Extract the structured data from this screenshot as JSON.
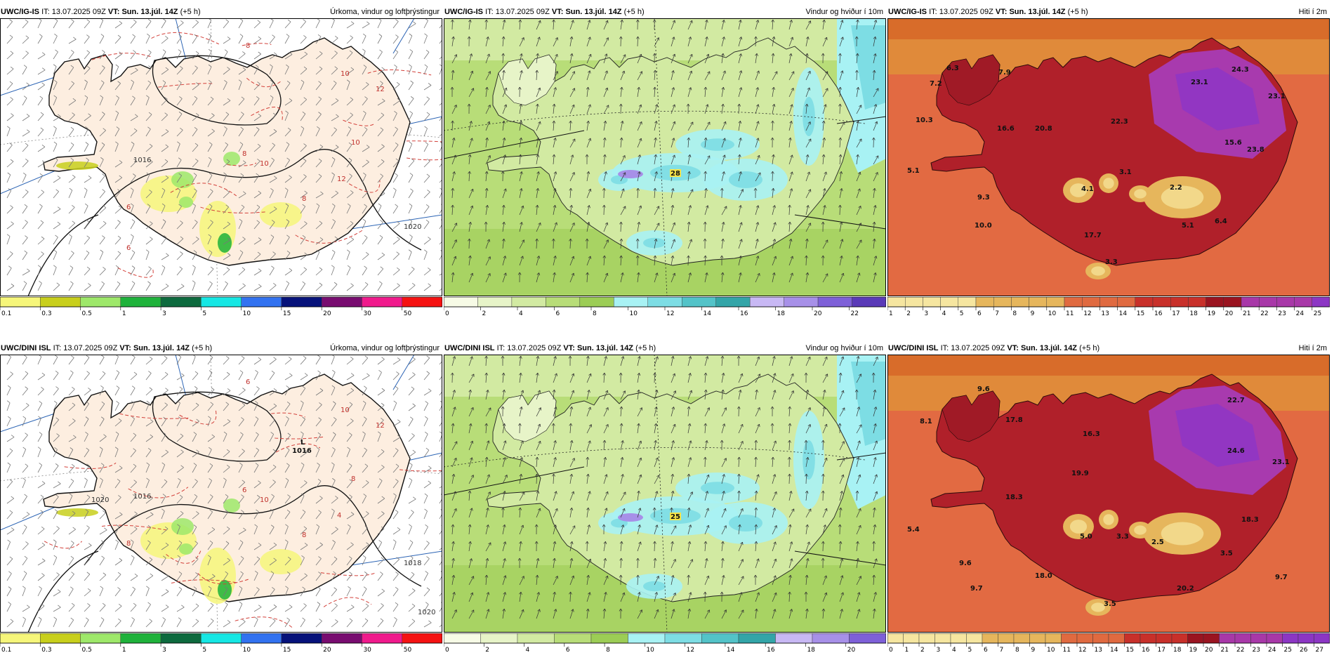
{
  "panels": [
    {
      "id": "igis-precip",
      "model": "UWC/IG-IS",
      "it_label": "IT:",
      "it": "13.07.2025 09Z",
      "vt_label": "VT:",
      "vt": "Sun. 13.júl. 14Z",
      "lead": "(+5 h)",
      "title": "Úrkoma, vindur og loftþrýstingur",
      "type": "precip",
      "legend": {
        "labels": [
          "0.1",
          "0.3",
          "0.5",
          "1",
          "3",
          "5",
          "10",
          "15",
          "20",
          "30",
          "50"
        ],
        "colors": [
          "#f6f67a",
          "#c8cf1c",
          "#9ee86a",
          "#1fb23b",
          "#0d6a3e",
          "#16e7e4",
          "#3272f0",
          "#06127a",
          "#780c70",
          "#f01a8c",
          "#f51212"
        ]
      },
      "pressure_labels": [
        "1016",
        "1020"
      ],
      "isotherm_labels": [
        "8",
        "10",
        "12",
        "6",
        "8",
        "8",
        "10",
        "12",
        "10",
        "6"
      ]
    },
    {
      "id": "igis-wind",
      "model": "UWC/IG-IS",
      "it_label": "IT:",
      "it": "13.07.2025 09Z",
      "vt_label": "VT:",
      "vt": "Sun. 13.júl. 14Z",
      "lead": "(+5 h)",
      "title": "Vindur og hviður í 10m",
      "type": "wind",
      "max_gust": "28",
      "legend": {
        "labels": [
          "0",
          "2",
          "4",
          "6",
          "8",
          "10",
          "12",
          "14",
          "16",
          "18",
          "20",
          "22"
        ],
        "colors": [
          "#f7fbe6",
          "#e7f4c8",
          "#d2eaa2",
          "#b8dd78",
          "#9ccd55",
          "#a8f2f4",
          "#7ddde4",
          "#53c3c8",
          "#33a5a8",
          "#c8b8f4",
          "#a790e8",
          "#7e60d8",
          "#5a3ab8"
        ]
      }
    },
    {
      "id": "igis-temp",
      "model": "UWC/IG-IS",
      "it_label": "IT:",
      "it": "13.07.2025 09Z",
      "vt_label": "VT:",
      "vt": "Sun. 13.júl. 14Z",
      "lead": "(+5 h)",
      "title": "Hiti í 2m",
      "type": "temp",
      "values": [
        "6.3",
        "7.2",
        "7.9",
        "24.3",
        "23.1",
        "23.1",
        "10.3",
        "16.6",
        "20.8",
        "22.3",
        "15.6",
        "23.8",
        "5.1",
        "3.1",
        "4.1",
        "2.2",
        "9.3",
        "10.0",
        "6.4",
        "5.1",
        "17.7",
        "3.3"
      ],
      "legend": {
        "labels": [
          "1",
          "2",
          "3",
          "4",
          "5",
          "6",
          "7",
          "8",
          "9",
          "10",
          "11",
          "12",
          "13",
          "14",
          "15",
          "16",
          "17",
          "18",
          "19",
          "20",
          "21",
          "22",
          "23",
          "24",
          "25"
        ]
      }
    },
    {
      "id": "dini-precip",
      "model": "UWC/DINI ISL",
      "it_label": "IT:",
      "it": "13.07.2025 09Z",
      "vt_label": "VT:",
      "vt": "Sun. 13.júl. 14Z",
      "lead": "(+5 h)",
      "title": "Úrkoma, vindur og loftþrýstingur",
      "type": "precip",
      "low_marker": "L",
      "low_value": "1016",
      "legend": {
        "labels": [
          "0.1",
          "0.3",
          "0.5",
          "1",
          "3",
          "5",
          "10",
          "15",
          "20",
          "30",
          "50"
        ],
        "colors": [
          "#f6f67a",
          "#c8cf1c",
          "#9ee86a",
          "#1fb23b",
          "#0d6a3e",
          "#16e7e4",
          "#3272f0",
          "#06127a",
          "#780c70",
          "#f01a8c",
          "#f51212"
        ]
      },
      "pressure_labels": [
        "1016",
        "1018",
        "1020",
        "1020"
      ],
      "isotherm_labels": [
        "6",
        "10",
        "12",
        "8",
        "6",
        "8",
        "10",
        "4",
        "8"
      ]
    },
    {
      "id": "dini-wind",
      "model": "UWC/DINI ISL",
      "it_label": "IT:",
      "it": "13.07.2025 09Z",
      "vt_label": "VT:",
      "vt": "Sun. 13.júl. 14Z",
      "lead": "(+5 h)",
      "title": "Vindur og hviður í 10m",
      "type": "wind",
      "max_gust": "25",
      "legend": {
        "labels": [
          "0",
          "2",
          "4",
          "6",
          "8",
          "10",
          "12",
          "14",
          "16",
          "18",
          "20"
        ],
        "colors": [
          "#f7fbe6",
          "#e7f4c8",
          "#d2eaa2",
          "#b8dd78",
          "#9ccd55",
          "#a8f2f4",
          "#7ddde4",
          "#53c3c8",
          "#33a5a8",
          "#c8b8f4",
          "#a790e8",
          "#7e60d8"
        ]
      }
    },
    {
      "id": "dini-temp",
      "model": "UWC/DINI ISL",
      "it_label": "IT:",
      "it": "13.07.2025 09Z",
      "vt_label": "VT:",
      "vt": "Sun. 13.júl. 14Z",
      "lead": "(+5 h)",
      "title": "Hiti í 2m",
      "type": "temp",
      "values": [
        "9.6",
        "8.1",
        "17.8",
        "16.3",
        "22.7",
        "23.1",
        "24.6",
        "19.9",
        "18.3",
        "18.3",
        "5.4",
        "5.0",
        "3.3",
        "2.5",
        "3.5",
        "9.6",
        "18.0",
        "9.7",
        "9.7",
        "20.2",
        "3.5"
      ],
      "legend": {
        "labels": [
          "0",
          "1",
          "2",
          "3",
          "4",
          "5",
          "6",
          "7",
          "8",
          "9",
          "10",
          "11",
          "12",
          "13",
          "14",
          "15",
          "16",
          "17",
          "18",
          "19",
          "20",
          "21",
          "22",
          "23",
          "24",
          "25",
          "26",
          "27"
        ]
      }
    }
  ]
}
